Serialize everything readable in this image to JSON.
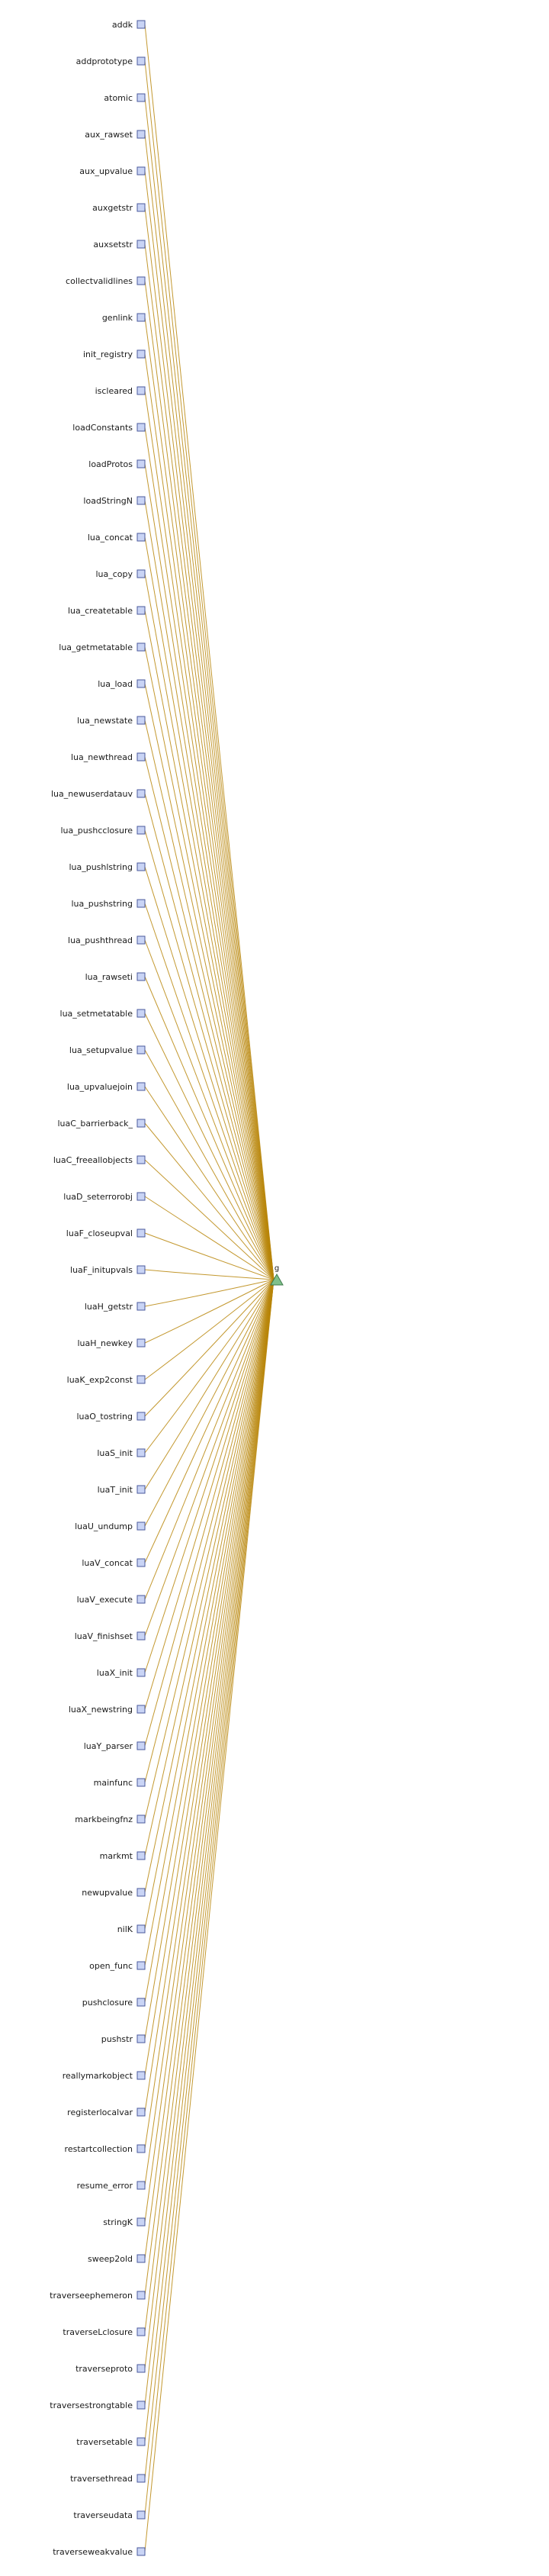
{
  "diagram": {
    "type": "call-graph",
    "hub": {
      "label": "g",
      "shape": "triangle",
      "color": "#7fc08b"
    },
    "edge_color": "#b8860b",
    "node_color": "#c9d4f5",
    "nodes": [
      "addk",
      "addprototype",
      "atomic",
      "aux_rawset",
      "aux_upvalue",
      "auxgetstr",
      "auxsetstr",
      "collectvalidlines",
      "genlink",
      "init_registry",
      "iscleared",
      "loadConstants",
      "loadProtos",
      "loadStringN",
      "lua_concat",
      "lua_copy",
      "lua_createtable",
      "lua_getmetatable",
      "lua_load",
      "lua_newstate",
      "lua_newthread",
      "lua_newuserdatauv",
      "lua_pushcclosure",
      "lua_pushlstring",
      "lua_pushstring",
      "lua_pushthread",
      "lua_rawseti",
      "lua_setmetatable",
      "lua_setupvalue",
      "lua_upvaluejoin",
      "luaC_barrierback_",
      "luaC_freeallobjects",
      "luaD_seterrorobj",
      "luaF_closeupval",
      "luaF_initupvals",
      "luaH_getstr",
      "luaH_newkey",
      "luaK_exp2const",
      "luaO_tostring",
      "luaS_init",
      "luaT_init",
      "luaU_undump",
      "luaV_concat",
      "luaV_execute",
      "luaV_finishset",
      "luaX_init",
      "luaX_newstring",
      "luaY_parser",
      "mainfunc",
      "markbeingfnz",
      "markmt",
      "newupvalue",
      "nilK",
      "open_func",
      "pushclosure",
      "pushstr",
      "reallymarkobject",
      "registerlocalvar",
      "restartcollection",
      "resume_error",
      "stringK",
      "sweep2old",
      "traverseephemeron",
      "traverseLclosure",
      "traverseproto",
      "traversestrongtable",
      "traversetable",
      "traversethread",
      "traverseudata",
      "traverseweakvalue"
    ]
  }
}
